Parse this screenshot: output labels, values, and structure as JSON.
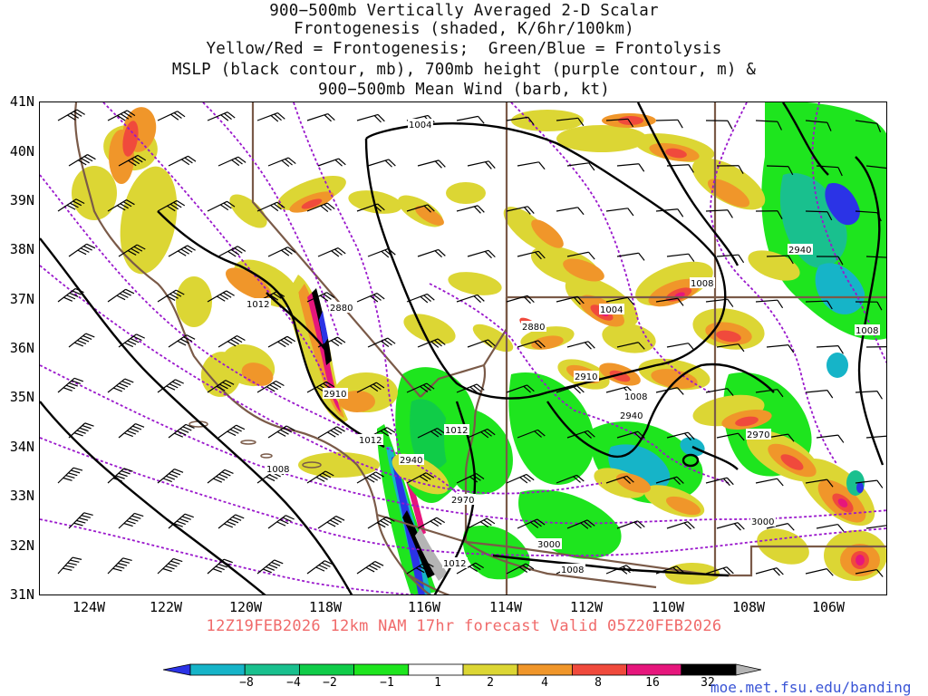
{
  "title": {
    "line1": "900−500mb Vertically Averaged 2-D Scalar",
    "line2": "Frontogenesis (shaded, K/6hr/100km)",
    "line3": "Yellow/Red = Frontogenesis;  Green/Blue = Frontolysis",
    "line4": "MSLP (black contour, mb), 700mb height (purple contour, m) &",
    "line5": "900−500mb Mean Wind (barb, kt)"
  },
  "lat_labels": [
    "41N",
    "40N",
    "39N",
    "38N",
    "37N",
    "36N",
    "35N",
    "34N",
    "33N",
    "32N",
    "31N"
  ],
  "lon_labels": [
    "124W",
    "122W",
    "120W",
    "118W",
    "116W",
    "114W",
    "112W",
    "110W",
    "108W",
    "106W"
  ],
  "forecast_text": "12Z19FEB2026 12km NAM 17hr forecast Valid 05Z20FEB2026",
  "credit": "moe.met.fsu.edu/banding",
  "colorbar": {
    "labels": [
      "−8",
      "−4",
      "−2",
      "−1",
      "1",
      "2",
      "4",
      "8",
      "16",
      "32"
    ],
    "colors": [
      "#2b33e6",
      "#16b4c8",
      "#19c08e",
      "#10cc48",
      "#1ee51e",
      "#ffffff",
      "#dcd634",
      "#f0962a",
      "#f04a3c",
      "#e6167c",
      "#000000",
      "#b4b4b4"
    ]
  },
  "map": {
    "pressure_labels": [
      "1004",
      "1008",
      "1012",
      "1012",
      "1012",
      "1004",
      "1008",
      "1008",
      "1008",
      "1008",
      "1012"
    ],
    "height_labels": [
      "2880",
      "2910",
      "2940",
      "2970",
      "3000",
      "2880",
      "2910",
      "2940",
      "2970",
      "2940",
      "3000"
    ],
    "colors": {
      "pressure_contour": "#000000",
      "height_contour": "#9a18cc",
      "borders": "#7a5a48",
      "barbs": "#000000"
    }
  }
}
